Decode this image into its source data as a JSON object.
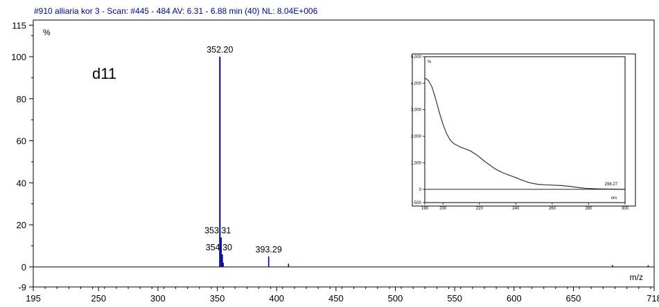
{
  "chart_data": [
    {
      "type": "bar",
      "title": "#910 alliaria kor 3 - Scan: #445 - 484  AV: 6.31 - 6.88 min (40) NL: 8.04E+006",
      "sample_label": "d11",
      "ylabel": "%",
      "xlabel": "m/z",
      "xlim": [
        195,
        718
      ],
      "ylim": [
        -9,
        115
      ],
      "x_ticks": [
        195,
        250,
        300,
        350,
        400,
        450,
        500,
        550,
        600,
        650,
        718
      ],
      "y_ticks": [
        0,
        20,
        40,
        60,
        80,
        100,
        115
      ],
      "y_extra_label": "-9",
      "series": [
        {
          "x": [
            352.2,
            353.31,
            354.3,
            355.0,
            393.29,
            410.0,
            683.0,
            713.0
          ],
          "values": [
            100,
            14,
            6,
            2,
            5,
            1.5,
            0.8,
            0.8
          ]
        }
      ],
      "peak_labels": [
        {
          "x": 352.2,
          "y": 100,
          "text": "352.20"
        },
        {
          "x": 353.31,
          "y": 14,
          "text": "353.31"
        },
        {
          "x": 354.3,
          "y": 6,
          "text": "354.30"
        },
        {
          "x": 393.29,
          "y": 5,
          "text": "393.29"
        }
      ],
      "color": "#00008b",
      "grid": false
    },
    {
      "type": "line",
      "title": "",
      "ylabel": "%",
      "xlabel": "nm",
      "xlim": [
        190,
        300
      ],
      "ylim": [
        -500,
        5000
      ],
      "x_ticks": [
        190,
        200,
        220,
        240,
        260,
        280,
        300
      ],
      "y_ticks": [
        -500,
        0,
        1000,
        2000,
        3000,
        4000,
        5000
      ],
      "y_tick_labels": [
        "-500",
        "0",
        "1,000",
        "2,000",
        "3,000",
        "4,000",
        "5,000"
      ],
      "series": [
        {
          "x": [
            190,
            192,
            194,
            196,
            198,
            200,
            202,
            204,
            206,
            208,
            210,
            212,
            215,
            218,
            220,
            222,
            225,
            228,
            230,
            233,
            236,
            240,
            244,
            248,
            252,
            256,
            260,
            265,
            270,
            274,
            278,
            282,
            286,
            290,
            294,
            300
          ],
          "values": [
            4200,
            4100,
            3850,
            3400,
            2900,
            2450,
            2100,
            1850,
            1720,
            1650,
            1580,
            1530,
            1450,
            1320,
            1220,
            1100,
            950,
            800,
            720,
            620,
            540,
            440,
            330,
            240,
            190,
            170,
            160,
            140,
            110,
            70,
            40,
            25,
            15,
            10,
            8,
            5
          ]
        }
      ],
      "end_label": "298.27",
      "color": "#333333",
      "grid": false
    }
  ]
}
